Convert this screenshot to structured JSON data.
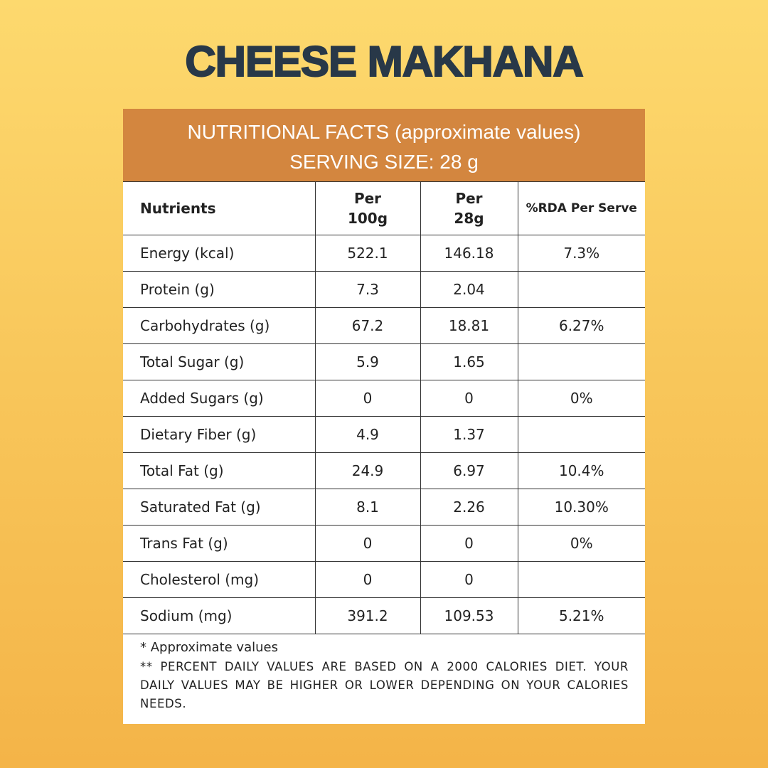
{
  "title": "CHEESE MAKHANA",
  "header": {
    "line1": "NUTRITIONAL FACTS (approximate values)",
    "line2": "SERVING SIZE: 28 g"
  },
  "table": {
    "columns": [
      "Nutrients",
      "Per 100g",
      "Per 28g",
      "%RDA Per Serve"
    ],
    "rows": [
      [
        "Energy (kcal)",
        "522.1",
        "146.18",
        "7.3%"
      ],
      [
        "Protein (g)",
        "7.3",
        "2.04",
        null
      ],
      [
        "Carbohydrates (g)",
        "67.2",
        "18.81",
        "6.27%"
      ],
      [
        "Total Sugar (g)",
        "5.9",
        "1.65",
        null
      ],
      [
        "Added Sugars (g)",
        "0",
        "0",
        "0%"
      ],
      [
        "Dietary Fiber (g)",
        "4.9",
        "1.37",
        null
      ],
      [
        "Total Fat (g)",
        "24.9",
        "6.97",
        "10.4%"
      ],
      [
        "Saturated Fat (g)",
        "8.1",
        "2.26",
        "10.30%"
      ],
      [
        "Trans Fat (g)",
        "0",
        "0",
        "0%"
      ],
      [
        "Cholesterol (mg)",
        "0",
        "0",
        null
      ],
      [
        "Sodium  (mg)",
        "391.2",
        "109.53",
        "5.21%"
      ]
    ]
  },
  "footnotes": [
    "* Approximate values",
    "** PERCENT DAILY VALUES ARE BASED ON A 2000 CALORIES DIET. YOUR DAILY VALUES MAY BE HIGHER OR LOWER DEPENDING ON YOUR CALORIES NEEDS."
  ]
}
